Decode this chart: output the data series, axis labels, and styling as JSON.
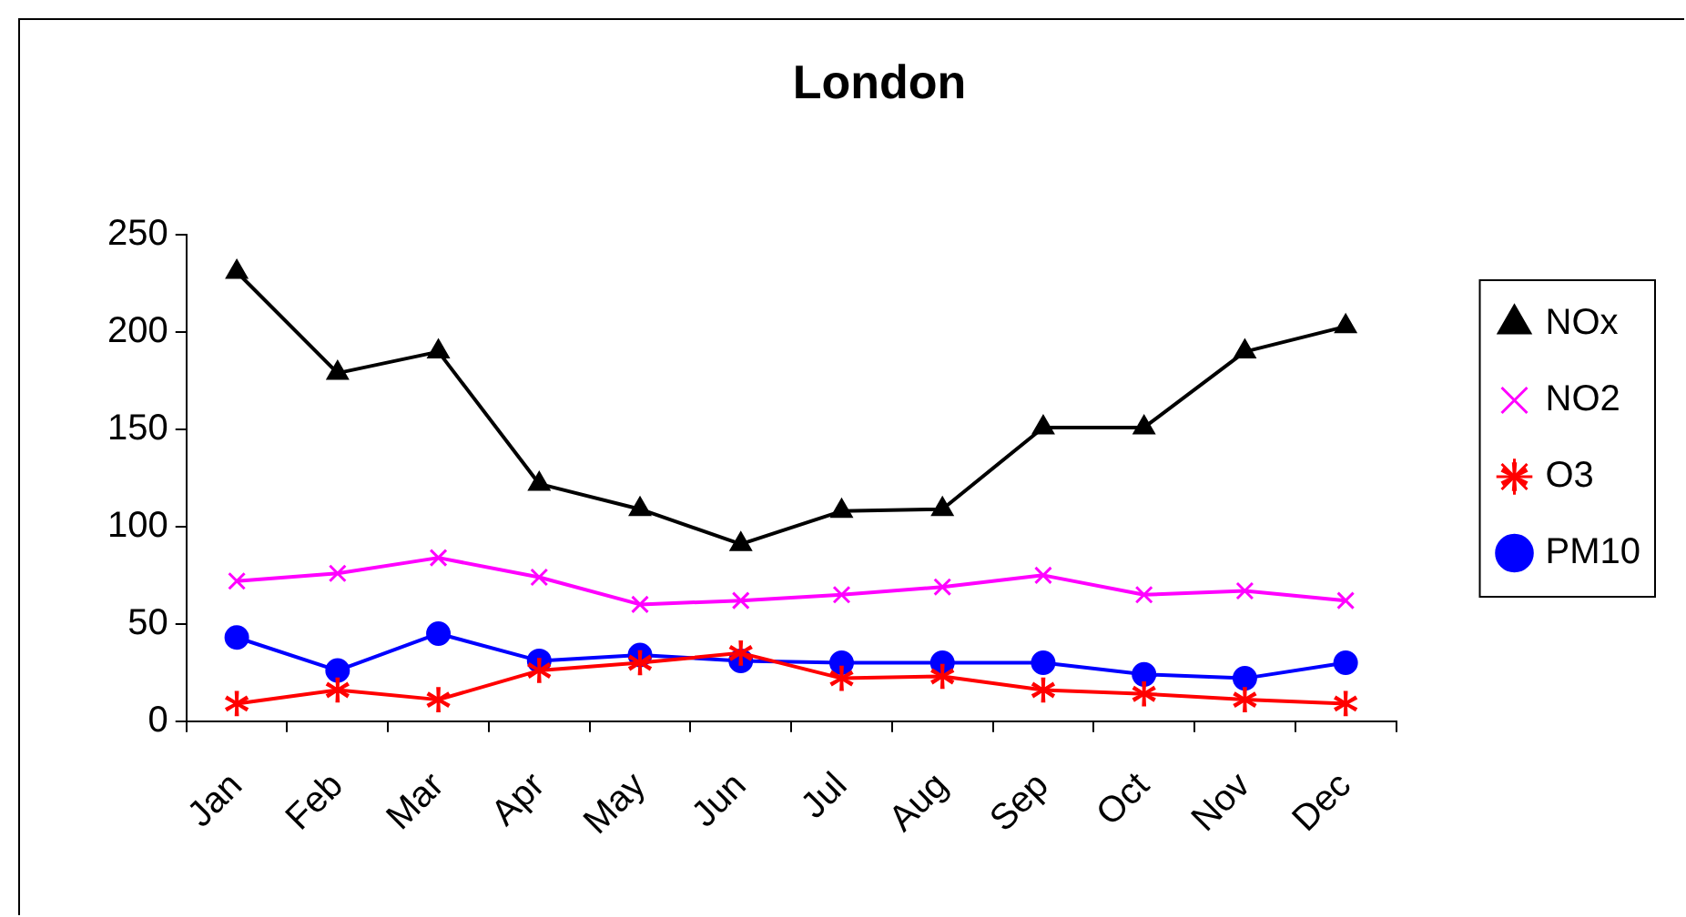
{
  "chart_data": {
    "type": "line",
    "title": "London",
    "categories": [
      "Jan",
      "Feb",
      "Mar",
      "Apr",
      "May",
      "Jun",
      "Jul",
      "Aug",
      "Sep",
      "Oct",
      "Nov",
      "Dec"
    ],
    "series": [
      {
        "name": "NOx",
        "color": "#000000",
        "marker": "triangle",
        "values": [
          231,
          179,
          190,
          122,
          109,
          91,
          108,
          109,
          151,
          151,
          190,
          203
        ]
      },
      {
        "name": "NO2",
        "color": "#ff00ff",
        "marker": "cross",
        "values": [
          72,
          76,
          84,
          74,
          60,
          62,
          65,
          69,
          75,
          65,
          67,
          62
        ]
      },
      {
        "name": "O3",
        "color": "#ff0000",
        "marker": "star",
        "values": [
          9,
          16,
          11,
          26,
          30,
          35,
          22,
          23,
          16,
          14,
          11,
          9
        ]
      },
      {
        "name": "PM10",
        "color": "#0000ff",
        "marker": "circle",
        "values": [
          43,
          26,
          45,
          31,
          34,
          31,
          30,
          30,
          30,
          24,
          22,
          30
        ]
      }
    ],
    "ylim": [
      0,
      250
    ],
    "yticks": [
      0,
      50,
      100,
      150,
      200,
      250
    ],
    "grid": false,
    "legend": "right"
  }
}
